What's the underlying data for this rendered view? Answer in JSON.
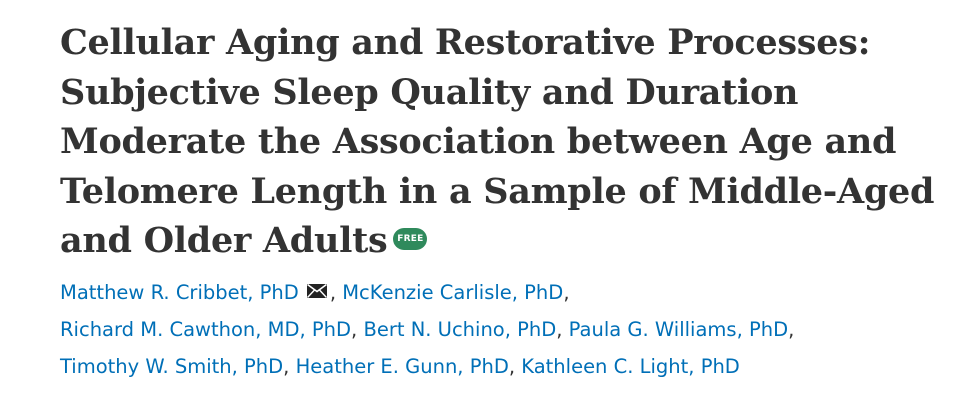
{
  "article": {
    "title": "Cellular Aging and Restorative Processes: Subjective Sleep Quality and Duration Moderate the Association between Age and Telomere Length in a Sample of Middle-Aged and Older Adults",
    "free_badge": "FREE",
    "authors": [
      "Matthew R. Cribbet, PhD",
      "McKenzie Carlisle, PhD",
      "Richard M. Cawthon, MD, PhD",
      "Bert N. Uchino, PhD",
      "Paula G. Williams, PhD",
      "Timothy W. Smith, PhD",
      "Heather E. Gunn, PhD",
      "Kathleen C. Light, PhD"
    ],
    "separator": ",",
    "icons": {
      "corresponding_author": "envelope-icon"
    },
    "colors": {
      "title": "#333333",
      "author_link": "#006fb7",
      "free_badge": "#2f8a5c"
    }
  }
}
